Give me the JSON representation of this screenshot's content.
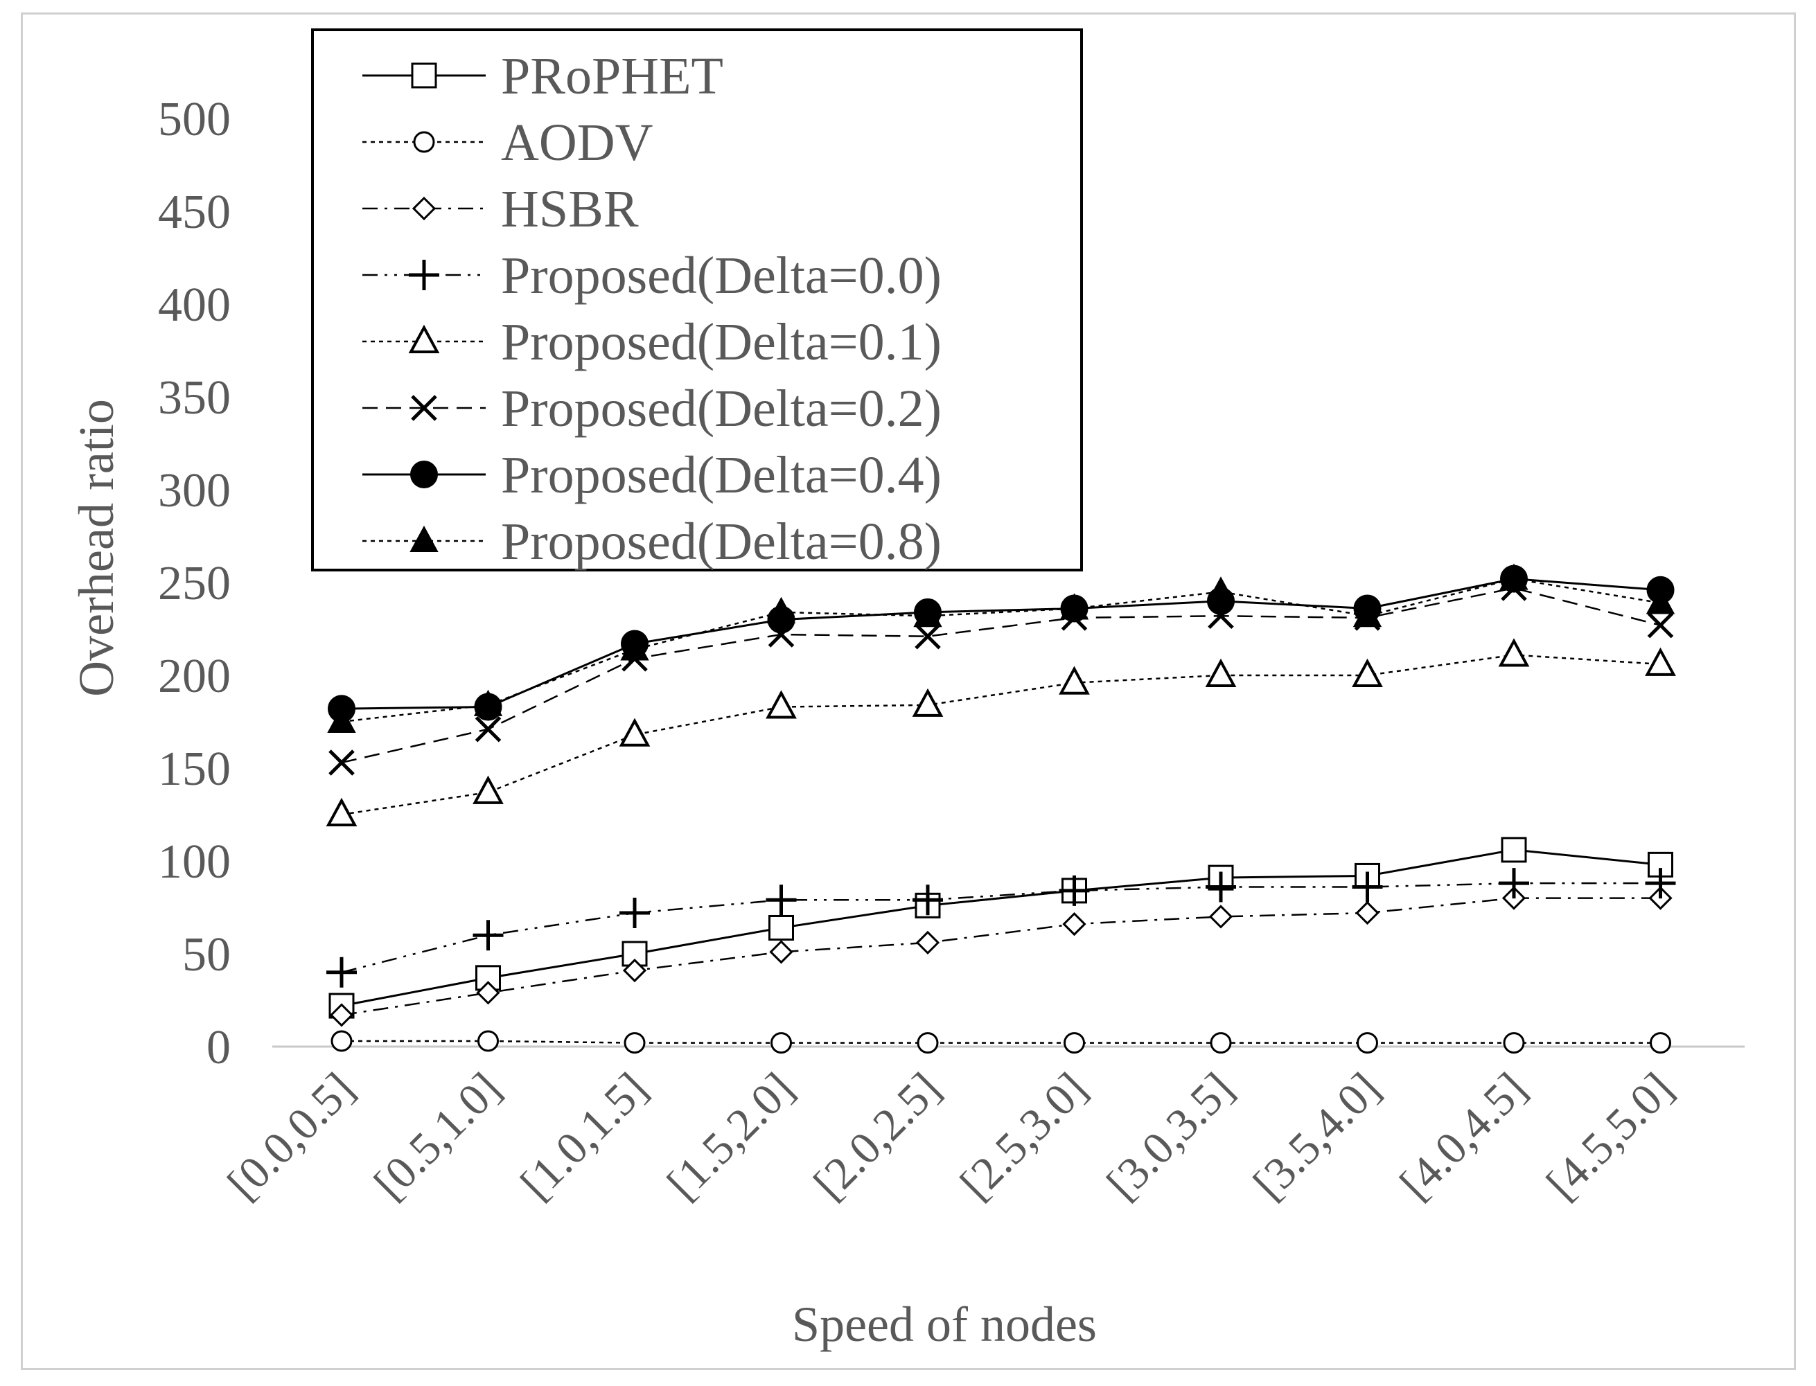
{
  "chart_data": {
    "type": "line",
    "title": "",
    "xlabel": "Speed of nodes",
    "ylabel": "Overhead ratio",
    "ylim": [
      0,
      500
    ],
    "yticks": [
      "0",
      "50",
      "100",
      "150",
      "200",
      "250",
      "300",
      "350",
      "400",
      "450",
      "500"
    ],
    "categories": [
      "[0.0,0.5]",
      "[0.5,1.0]",
      "[1.0,1.5]",
      "[1.5,2.0]",
      "[2.0,2.5]",
      "[2.5,3.0]",
      "[3.0,3.5]",
      "[3.5,4.0]",
      "[4.0,4.5]",
      "[4.5,5.0]"
    ],
    "legend_position": "top-left",
    "grid": false,
    "series": [
      {
        "name": "PRoPHET",
        "marker": "square-open",
        "line": "solid",
        "values": [
          22,
          37,
          50,
          64,
          76,
          84,
          91,
          92,
          106,
          98
        ]
      },
      {
        "name": "AODV",
        "marker": "circle-open",
        "line": "dotted",
        "values": [
          3,
          3,
          2,
          2,
          2,
          2,
          2,
          2,
          2,
          2
        ]
      },
      {
        "name": "HSBR",
        "marker": "diamond-open",
        "line": "dashdot",
        "values": [
          17,
          29,
          41,
          51,
          56,
          66,
          70,
          72,
          80,
          80
        ]
      },
      {
        "name": "Proposed(Delta=0.0)",
        "marker": "plus",
        "line": "dashdotdot",
        "values": [
          40,
          60,
          72,
          79,
          79,
          84,
          86,
          86,
          88,
          88
        ]
      },
      {
        "name": "Proposed(Delta=0.1)",
        "marker": "triangle-open",
        "line": "dotted",
        "values": [
          125,
          137,
          168,
          183,
          184,
          196,
          200,
          200,
          211,
          206
        ]
      },
      {
        "name": "Proposed(Delta=0.2)",
        "marker": "x",
        "line": "dashed",
        "values": [
          153,
          171,
          209,
          222,
          221,
          231,
          232,
          231,
          247,
          227
        ]
      },
      {
        "name": "Proposed(Delta=0.4)",
        "marker": "circle-filled",
        "line": "solid",
        "values": [
          182,
          183,
          217,
          230,
          234,
          236,
          240,
          236,
          252,
          246
        ]
      },
      {
        "name": "Proposed(Delta=0.8)",
        "marker": "triangle-filled",
        "line": "dotted",
        "values": [
          175,
          184,
          214,
          234,
          232,
          236,
          245,
          232,
          252,
          239
        ]
      }
    ]
  }
}
